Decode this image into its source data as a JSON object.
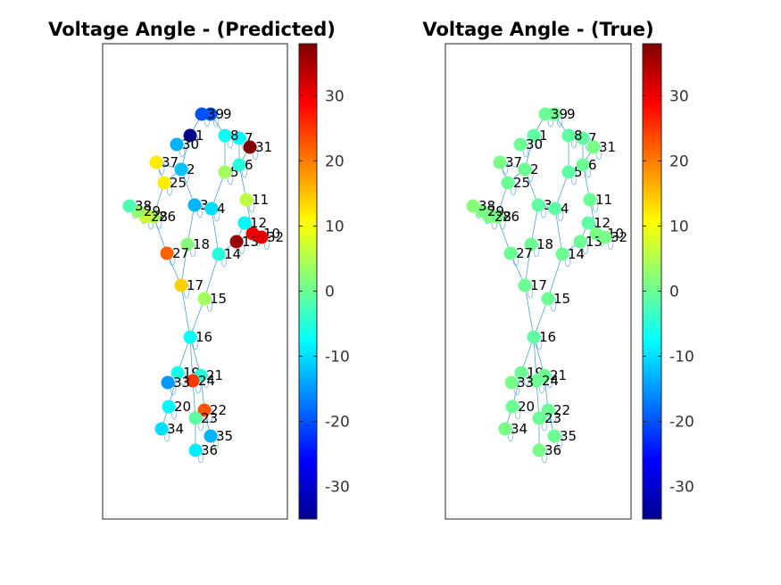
{
  "chart_data": [
    {
      "type": "scatter",
      "title": "Voltage Angle - (Predicted)",
      "xlabel": "",
      "ylabel": "",
      "colormap": "jet",
      "clim": [
        -35,
        38
      ],
      "colorbar_ticks": [
        "30",
        "20",
        "10",
        "0",
        "-10",
        "-20",
        "-30"
      ],
      "nodes": [
        {
          "id": "1",
          "value": -34
        },
        {
          "id": "2",
          "value": -12
        },
        {
          "id": "3",
          "value": -13
        },
        {
          "id": "4",
          "value": -10
        },
        {
          "id": "5",
          "value": 4
        },
        {
          "id": "6",
          "value": -5
        },
        {
          "id": "7",
          "value": -8
        },
        {
          "id": "8",
          "value": -7
        },
        {
          "id": "9",
          "value": -20
        },
        {
          "id": "10",
          "value": 30
        },
        {
          "id": "11",
          "value": 6
        },
        {
          "id": "12",
          "value": -8
        },
        {
          "id": "13",
          "value": 36
        },
        {
          "id": "14",
          "value": -5
        },
        {
          "id": "15",
          "value": 4
        },
        {
          "id": "16",
          "value": -7
        },
        {
          "id": "17",
          "value": 14
        },
        {
          "id": "18",
          "value": 2
        },
        {
          "id": "19",
          "value": -6
        },
        {
          "id": "20",
          "value": -8
        },
        {
          "id": "21",
          "value": -5
        },
        {
          "id": "22",
          "value": 23
        },
        {
          "id": "23",
          "value": -1
        },
        {
          "id": "24",
          "value": 25
        },
        {
          "id": "25",
          "value": 12
        },
        {
          "id": "26",
          "value": 5
        },
        {
          "id": "27",
          "value": 22
        },
        {
          "id": "28",
          "value": 7
        },
        {
          "id": "29",
          "value": 3
        },
        {
          "id": "30",
          "value": -13
        },
        {
          "id": "31",
          "value": 38
        },
        {
          "id": "32",
          "value": 31
        },
        {
          "id": "33",
          "value": -15
        },
        {
          "id": "34",
          "value": -10
        },
        {
          "id": "35",
          "value": -13
        },
        {
          "id": "36",
          "value": -9
        },
        {
          "id": "37",
          "value": 12
        },
        {
          "id": "38",
          "value": -2
        },
        {
          "id": "39",
          "value": -20
        }
      ]
    },
    {
      "type": "scatter",
      "title": "Voltage Angle - (True)",
      "xlabel": "",
      "ylabel": "",
      "colormap": "jet",
      "clim": [
        -35,
        38
      ],
      "colorbar_ticks": [
        "30",
        "20",
        "10",
        "0",
        "-10",
        "-20",
        "-30"
      ],
      "nodes": [
        {
          "id": "1",
          "value": -1
        },
        {
          "id": "2",
          "value": 0
        },
        {
          "id": "3",
          "value": -1
        },
        {
          "id": "4",
          "value": -1
        },
        {
          "id": "5",
          "value": -1
        },
        {
          "id": "6",
          "value": 0
        },
        {
          "id": "7",
          "value": -1
        },
        {
          "id": "8",
          "value": -1
        },
        {
          "id": "9",
          "value": 0
        },
        {
          "id": "10",
          "value": 1
        },
        {
          "id": "11",
          "value": 0
        },
        {
          "id": "12",
          "value": -1
        },
        {
          "id": "13",
          "value": 0
        },
        {
          "id": "14",
          "value": 0
        },
        {
          "id": "15",
          "value": 0
        },
        {
          "id": "16",
          "value": -1
        },
        {
          "id": "17",
          "value": 0
        },
        {
          "id": "18",
          "value": 0
        },
        {
          "id": "19",
          "value": 0
        },
        {
          "id": "20",
          "value": 0
        },
        {
          "id": "21",
          "value": 0
        },
        {
          "id": "22",
          "value": 0
        },
        {
          "id": "23",
          "value": 0
        },
        {
          "id": "24",
          "value": 0
        },
        {
          "id": "25",
          "value": 0
        },
        {
          "id": "26",
          "value": 1
        },
        {
          "id": "27",
          "value": 0
        },
        {
          "id": "28",
          "value": 1
        },
        {
          "id": "29",
          "value": 1
        },
        {
          "id": "30",
          "value": 0
        },
        {
          "id": "31",
          "value": 1
        },
        {
          "id": "32",
          "value": 1
        },
        {
          "id": "33",
          "value": 1
        },
        {
          "id": "34",
          "value": 1
        },
        {
          "id": "35",
          "value": 0
        },
        {
          "id": "36",
          "value": 1
        },
        {
          "id": "37",
          "value": 1
        },
        {
          "id": "38",
          "value": 2
        },
        {
          "id": "39",
          "value": 0
        }
      ]
    }
  ],
  "network": {
    "edges": [
      [
        "1",
        "39"
      ],
      [
        "1",
        "2"
      ],
      [
        "1",
        "30"
      ],
      [
        "2",
        "3"
      ],
      [
        "2",
        "25"
      ],
      [
        "2",
        "37"
      ],
      [
        "25",
        "37"
      ],
      [
        "3",
        "4"
      ],
      [
        "3",
        "18"
      ],
      [
        "4",
        "5"
      ],
      [
        "4",
        "14"
      ],
      [
        "5",
        "6"
      ],
      [
        "5",
        "8"
      ],
      [
        "6",
        "7"
      ],
      [
        "6",
        "11"
      ],
      [
        "6",
        "31"
      ],
      [
        "7",
        "8"
      ],
      [
        "8",
        "9"
      ],
      [
        "9",
        "39"
      ],
      [
        "10",
        "11"
      ],
      [
        "10",
        "13"
      ],
      [
        "10",
        "32"
      ],
      [
        "12",
        "13"
      ],
      [
        "13",
        "14"
      ],
      [
        "14",
        "15"
      ],
      [
        "15",
        "16"
      ],
      [
        "16",
        "17"
      ],
      [
        "16",
        "19"
      ],
      [
        "16",
        "21"
      ],
      [
        "16",
        "24"
      ],
      [
        "17",
        "18"
      ],
      [
        "17",
        "27"
      ],
      [
        "19",
        "20"
      ],
      [
        "19",
        "33"
      ],
      [
        "20",
        "34"
      ],
      [
        "21",
        "22"
      ],
      [
        "22",
        "23"
      ],
      [
        "22",
        "35"
      ],
      [
        "23",
        "24"
      ],
      [
        "23",
        "36"
      ],
      [
        "25",
        "26"
      ],
      [
        "26",
        "27"
      ],
      [
        "26",
        "28"
      ],
      [
        "26",
        "29"
      ],
      [
        "28",
        "29"
      ],
      [
        "29",
        "38"
      ]
    ]
  }
}
